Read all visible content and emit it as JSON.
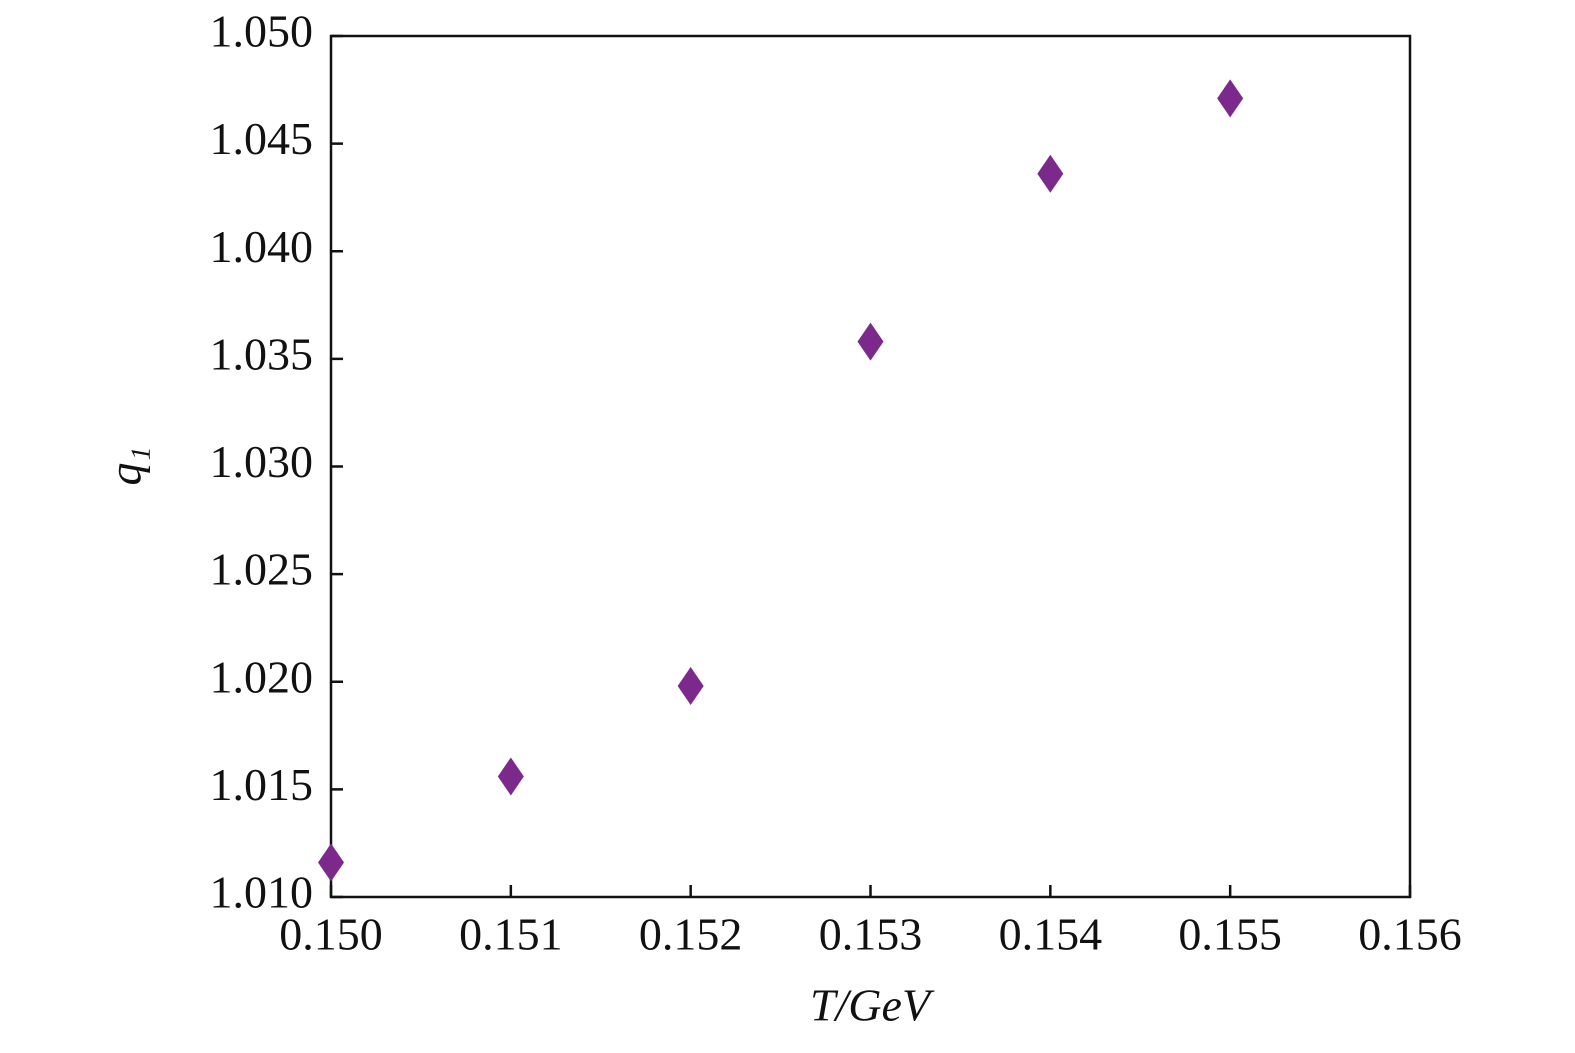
{
  "chart_data": {
    "type": "scatter",
    "x_label": "T/GeV",
    "y_label": "q₁",
    "x": [
      0.15,
      0.151,
      0.152,
      0.153,
      0.154,
      0.155
    ],
    "series": [
      {
        "color": "#7b2a8c",
        "values": [
          1.0116,
          1.0156,
          1.0198,
          1.0358,
          1.0436,
          1.0471
        ]
      }
    ],
    "xlim": [
      0.15,
      0.156
    ],
    "ylim": [
      1.01,
      1.05
    ],
    "xticks": [
      {
        "value": 0.15,
        "label": "0.150"
      },
      0.151,
      0.152,
      0.153,
      0.154,
      0.155,
      0.156
    ],
    "yticks": [
      {
        "value": 1.01,
        "label": "1.010"
      },
      1.015,
      {
        "value": 1.02,
        "label": "1.020"
      },
      1.025,
      {
        "value": 1.03,
        "label": "1.030"
      },
      1.035,
      {
        "value": 1.04,
        "label": "1.040"
      },
      1.045,
      {
        "value": 1.05,
        "label": "1.050"
      }
    ]
  }
}
